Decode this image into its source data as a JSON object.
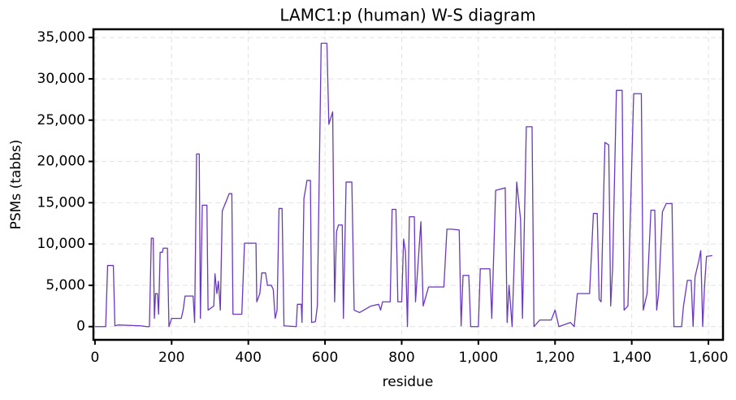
{
  "chart_data": {
    "type": "line",
    "title": "LAMC1:p (human) W-S diagram",
    "xlabel": "residue",
    "ylabel": "PSMs (tabbs)",
    "color": "#6a38c2",
    "grid": true,
    "xlim": [
      -4,
      1638
    ],
    "ylim": [
      -1600,
      36000
    ],
    "xticks": [
      0,
      200,
      400,
      600,
      800,
      {
        "value": 1000,
        "label": "1,000"
      },
      {
        "value": 1200,
        "label": "1,200"
      },
      {
        "value": 1400,
        "label": "1,400"
      },
      {
        "value": 1600,
        "label": "1,600"
      }
    ],
    "yticks": [
      0,
      {
        "value": 5000,
        "label": "5,000"
      },
      {
        "value": 10000,
        "label": "10,000"
      },
      {
        "value": 15000,
        "label": "15,000"
      },
      {
        "value": 20000,
        "label": "20,000"
      },
      {
        "value": 25000,
        "label": "25,000"
      },
      {
        "value": 30000,
        "label": "30,000"
      },
      {
        "value": 35000,
        "label": "35,000"
      }
    ],
    "x": [
      0,
      28,
      33,
      48,
      52,
      60,
      120,
      135,
      142,
      147,
      152,
      155,
      158,
      163,
      166,
      170,
      176,
      178,
      189,
      193,
      200,
      225,
      230,
      235,
      256,
      260,
      265,
      272,
      275,
      280,
      292,
      295,
      310,
      313,
      318,
      322,
      327,
      332,
      345,
      350,
      357,
      360,
      383,
      390,
      420,
      422,
      430,
      435,
      445,
      450,
      460,
      465,
      470,
      475,
      480,
      488,
      493,
      525,
      528,
      538,
      540,
      545,
      553,
      562,
      565,
      575,
      580,
      590,
      605,
      610,
      620,
      625,
      630,
      635,
      645,
      648,
      655,
      670,
      676,
      690,
      720,
      740,
      745,
      750,
      770,
      775,
      785,
      790,
      800,
      805,
      810,
      815,
      820,
      833,
      836,
      850,
      856,
      870,
      910,
      918,
      930,
      950,
      955,
      960,
      975,
      980,
      1000,
      1005,
      1030,
      1035,
      1045,
      1070,
      1075,
      1080,
      1088,
      1100,
      1110,
      1115,
      1125,
      1140,
      1145,
      1160,
      1190,
      1200,
      1210,
      1240,
      1250,
      1258,
      1290,
      1300,
      1310,
      1315,
      1320,
      1330,
      1340,
      1345,
      1350,
      1360,
      1375,
      1380,
      1390,
      1405,
      1425,
      1430,
      1440,
      1450,
      1460,
      1465,
      1470,
      1480,
      1490,
      1505,
      1510,
      1530,
      1535,
      1545,
      1555,
      1560,
      1565,
      1575,
      1580,
      1585,
      1590,
      1595,
      1610
    ],
    "values": [
      0,
      0,
      7400,
      7400,
      100,
      200,
      100,
      0,
      0,
      10700,
      10700,
      1000,
      4000,
      4000,
      1500,
      9000,
      9000,
      9500,
      9500,
      0,
      1000,
      1000,
      2000,
      3700,
      3700,
      500,
      20900,
      20900,
      1000,
      14700,
      14700,
      2000,
      2500,
      6400,
      4000,
      5500,
      2000,
      14000,
      15500,
      16100,
      16100,
      1500,
      1500,
      10100,
      10100,
      3000,
      4000,
      6500,
      6500,
      5000,
      5000,
      4500,
      1000,
      2000,
      14300,
      14300,
      100,
      0,
      2700,
      2700,
      500,
      15500,
      17700,
      17700,
      500,
      600,
      2500,
      34300,
      34300,
      24500,
      26000,
      3000,
      11500,
      12300,
      12300,
      1000,
      17500,
      17500,
      2000,
      1700,
      2500,
      2700,
      2000,
      3000,
      3000,
      14200,
      14200,
      3000,
      3000,
      10600,
      9000,
      0,
      13300,
      13300,
      3000,
      12700,
      2500,
      4800,
      4800,
      11800,
      11800,
      11700,
      100,
      6200,
      6200,
      0,
      0,
      7000,
      7000,
      1000,
      16500,
      16800,
      500,
      5000,
      0,
      17500,
      13000,
      1000,
      24200,
      24200,
      0,
      800,
      800,
      2000,
      0,
      500,
      0,
      4000,
      4000,
      13700,
      13700,
      3300,
      3000,
      22300,
      22000,
      2500,
      7000,
      28600,
      28600,
      2000,
      2500,
      28200,
      28200,
      2000,
      4000,
      14100,
      14100,
      2000,
      4000,
      13900,
      14900,
      14900,
      0,
      0,
      2500,
      5600,
      5600,
      0,
      6000,
      8000,
      9200,
      0,
      5000,
      8500,
      8600
    ]
  }
}
